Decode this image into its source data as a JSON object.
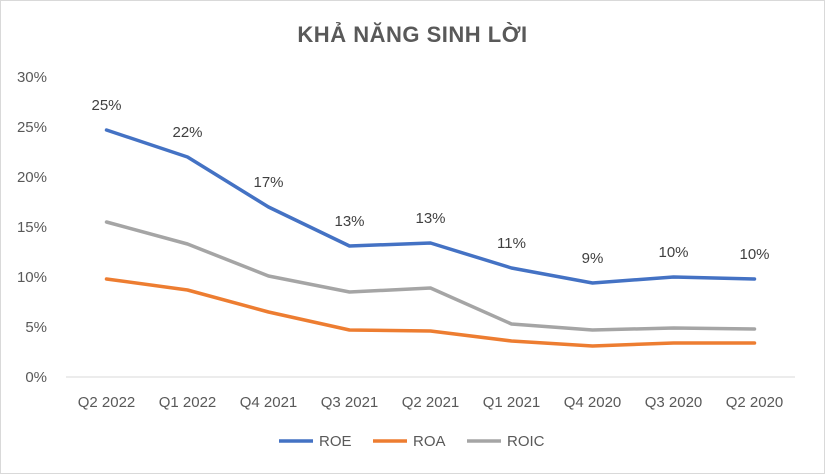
{
  "chart_data": {
    "type": "line",
    "title": "KHẢ NĂNG SINH LỜI",
    "categories": [
      "Q2 2022",
      "Q1 2022",
      "Q4 2021",
      "Q3 2021",
      "Q2 2021",
      "Q1 2021",
      "Q4 2020",
      "Q3 2020",
      "Q2 2020"
    ],
    "y_ticks": [
      "0%",
      "5%",
      "10%",
      "15%",
      "20%",
      "25%",
      "30%"
    ],
    "ylim": [
      0,
      30
    ],
    "grid": false,
    "legend_position": "bottom",
    "series": [
      {
        "name": "ROE",
        "color": "#4472C4",
        "values": [
          24.7,
          22.0,
          17.0,
          13.1,
          13.4,
          10.9,
          9.4,
          10.0,
          9.8
        ],
        "labels": [
          "25%",
          "22%",
          "17%",
          "13%",
          "13%",
          "11%",
          "9%",
          "10%",
          "10%"
        ]
      },
      {
        "name": "ROA",
        "color": "#ED7D31",
        "values": [
          9.8,
          8.7,
          6.5,
          4.7,
          4.6,
          3.6,
          3.1,
          3.4,
          3.4
        ]
      },
      {
        "name": "ROIC",
        "color": "#A5A5A5",
        "values": [
          15.5,
          13.3,
          10.1,
          8.5,
          8.9,
          5.3,
          4.7,
          4.9,
          4.8
        ]
      }
    ]
  }
}
